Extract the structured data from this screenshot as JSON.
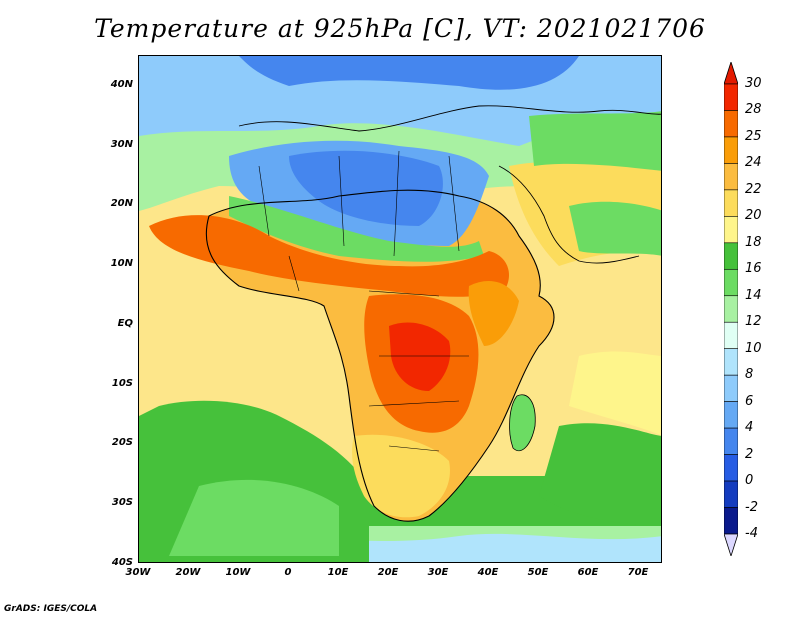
{
  "title": "Temperature at 925hPa [C], VT: 2021021706",
  "credit": "GrADS: IGES/COLA",
  "map": {
    "lat_labels": [
      "40N",
      "30N",
      "20N",
      "10N",
      "EQ",
      "10S",
      "20S",
      "30S",
      "40S"
    ],
    "lon_labels": [
      "30W",
      "20W",
      "10W",
      "0",
      "10E",
      "20E",
      "30E",
      "40E",
      "50E",
      "60E",
      "70E"
    ]
  },
  "colorbar": {
    "levels": [
      "30",
      "28",
      "25",
      "24",
      "22",
      "20",
      "18",
      "16",
      "14",
      "12",
      "10",
      "8",
      "6",
      "4",
      "2",
      "0",
      "-2",
      "-4"
    ],
    "colors": [
      "#f22700",
      "#f76a00",
      "#fa9d08",
      "#fbbc40",
      "#fcdc5c",
      "#fef58b",
      "#46c13b",
      "#6cdc63",
      "#a8f1a2",
      "#e0fff4",
      "#b0e4fc",
      "#8ecbfb",
      "#65a9f4",
      "#4586ee",
      "#275de4",
      "#143cbf",
      "#0a1a8c",
      "#dcd8ff"
    ],
    "cap_top_color": "#e31a00",
    "cap_bottom_color": "#dcd8ff"
  }
}
